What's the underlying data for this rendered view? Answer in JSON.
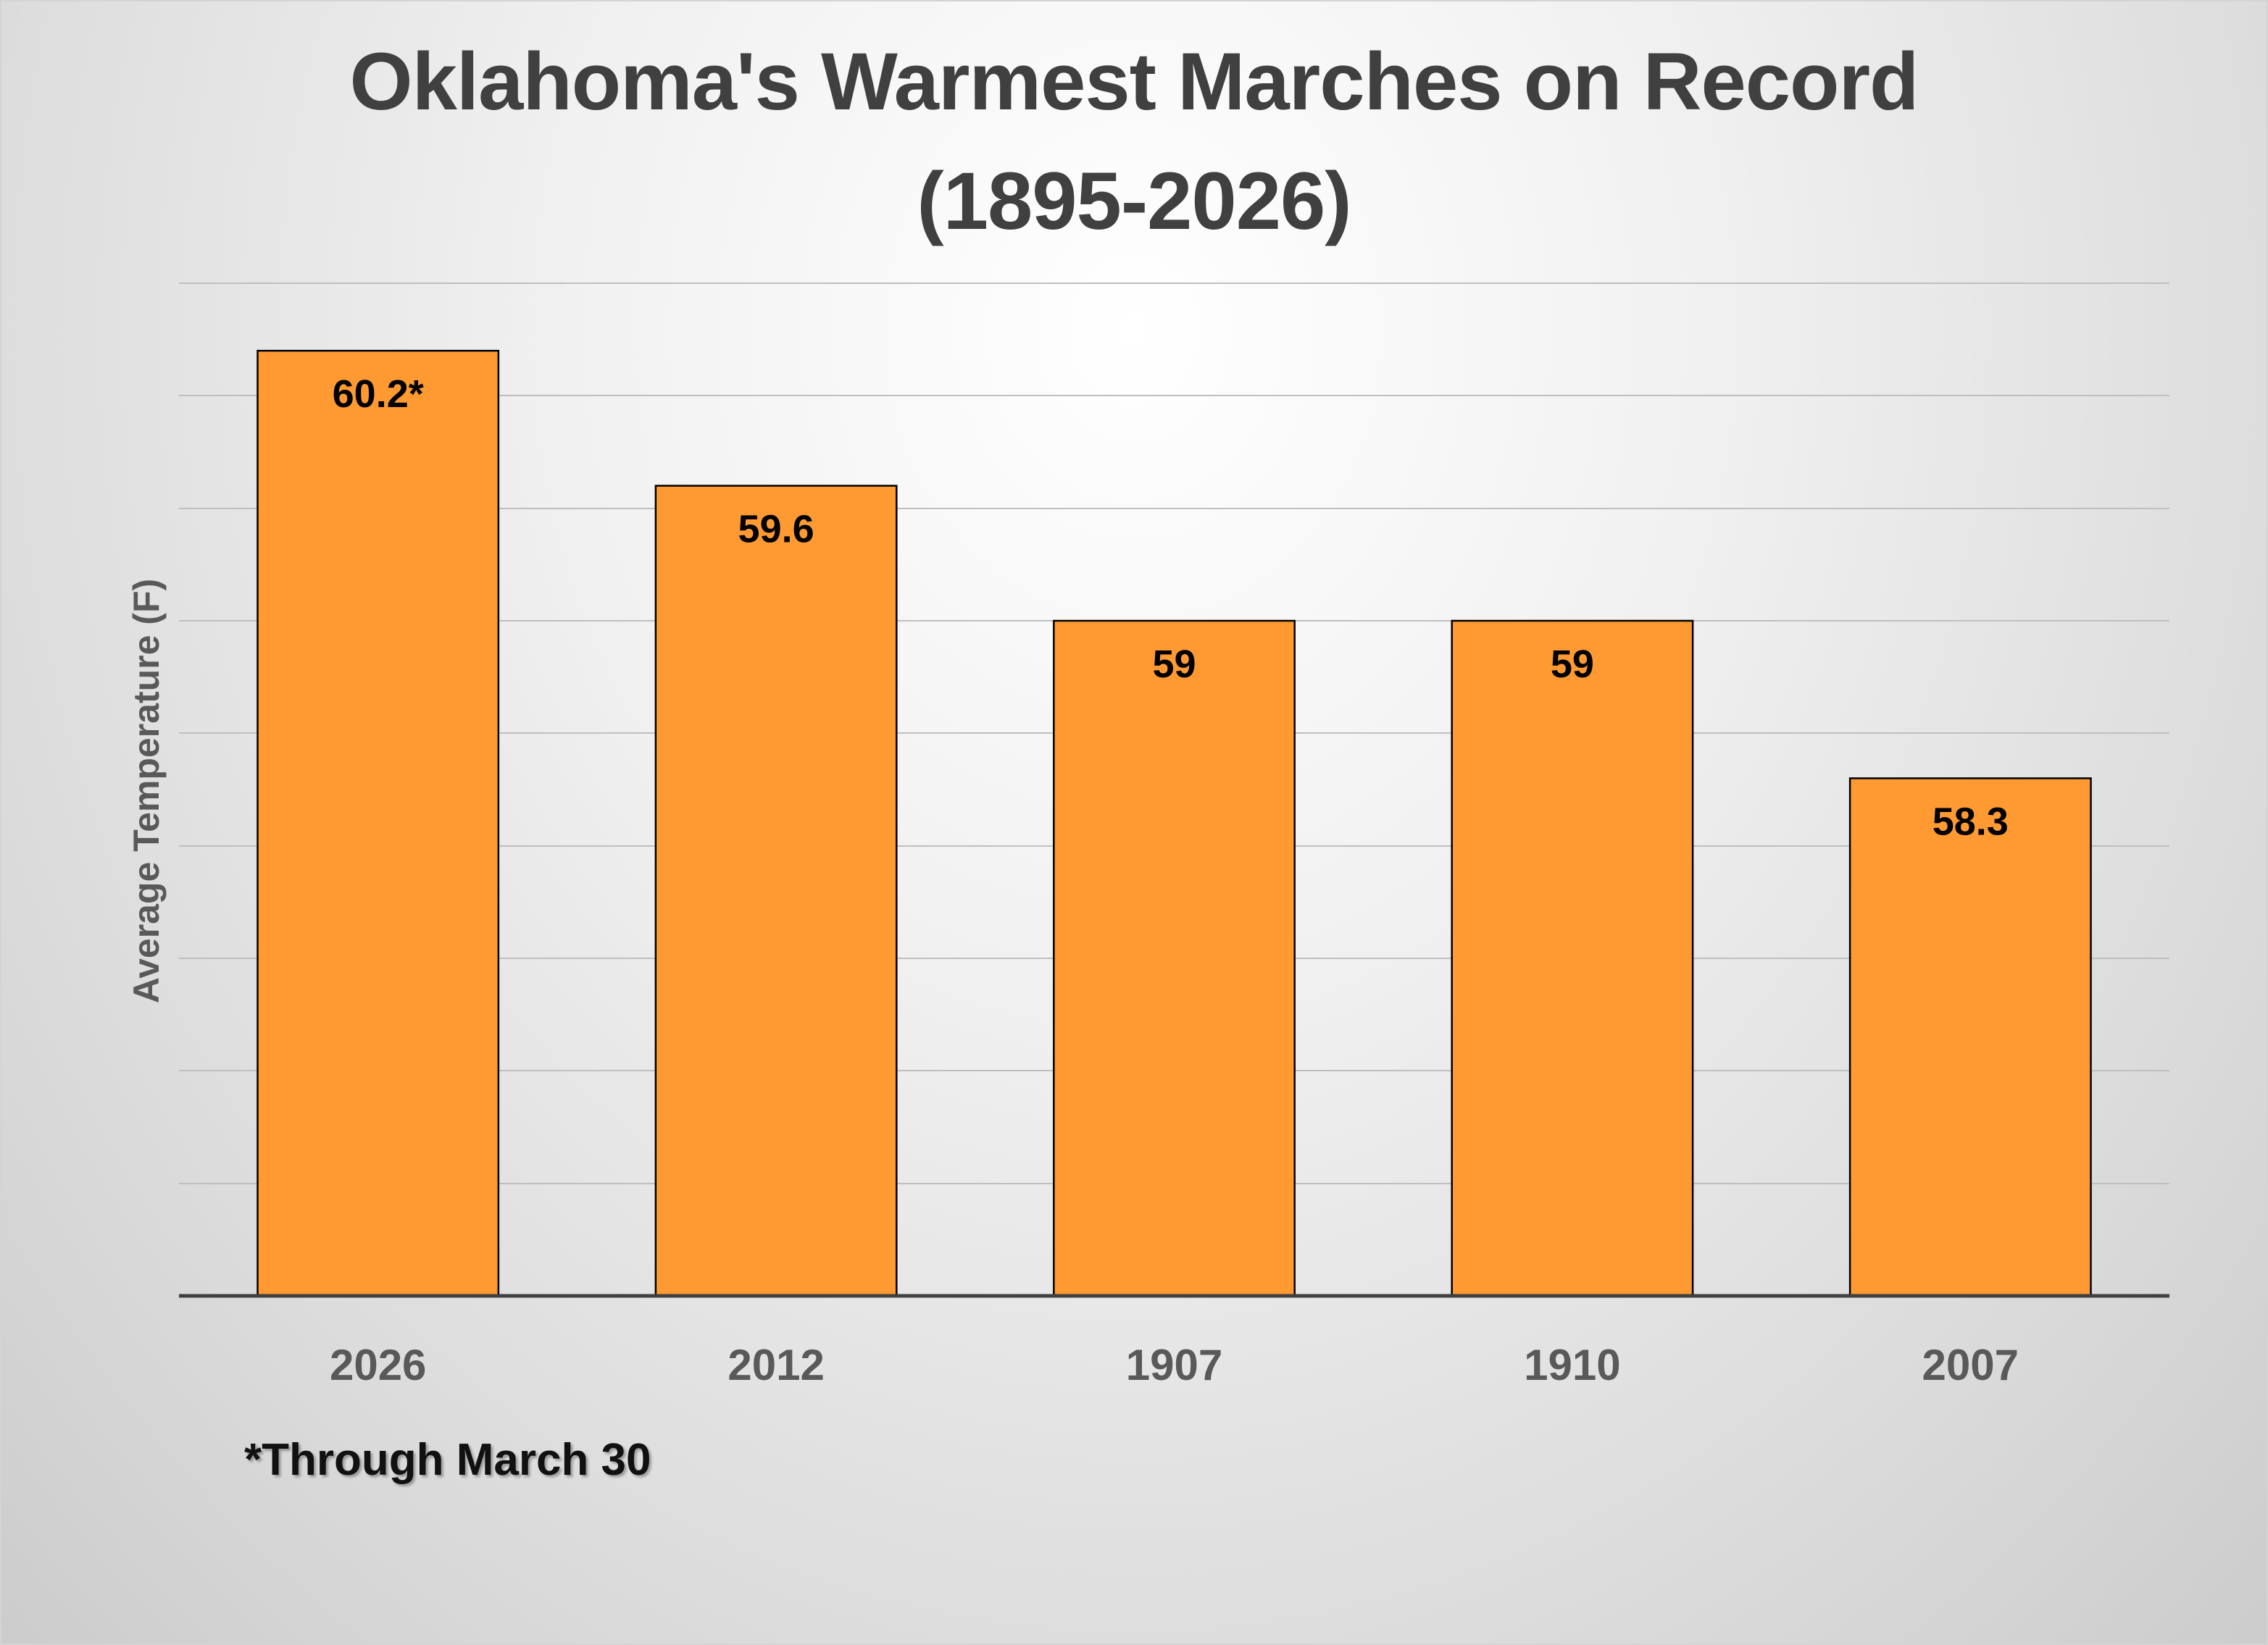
{
  "chart_data": {
    "type": "bar",
    "title": "Oklahoma's Warmest Marches on Record",
    "subtitle": "(1895-2026)",
    "xlabel": "",
    "ylabel": "Average Temperature (F)",
    "categories": [
      "2026",
      "2012",
      "1907",
      "1910",
      "2007"
    ],
    "values": [
      60.2,
      59.6,
      59,
      59,
      58.3
    ],
    "data_labels": [
      "60.2*",
      "59.6",
      "59",
      "59",
      "58.3"
    ],
    "ylim": [
      56.0,
      60.5
    ],
    "gridline_step": 0.5,
    "grid": true,
    "y_tick_labels_shown": false,
    "legend": "none",
    "footnote": "*Through March 30",
    "bar_color": "#FF9A33",
    "bar_outline_color": "#000000",
    "gridline_color": "#BFBFBF",
    "axis_color": "#404040"
  }
}
